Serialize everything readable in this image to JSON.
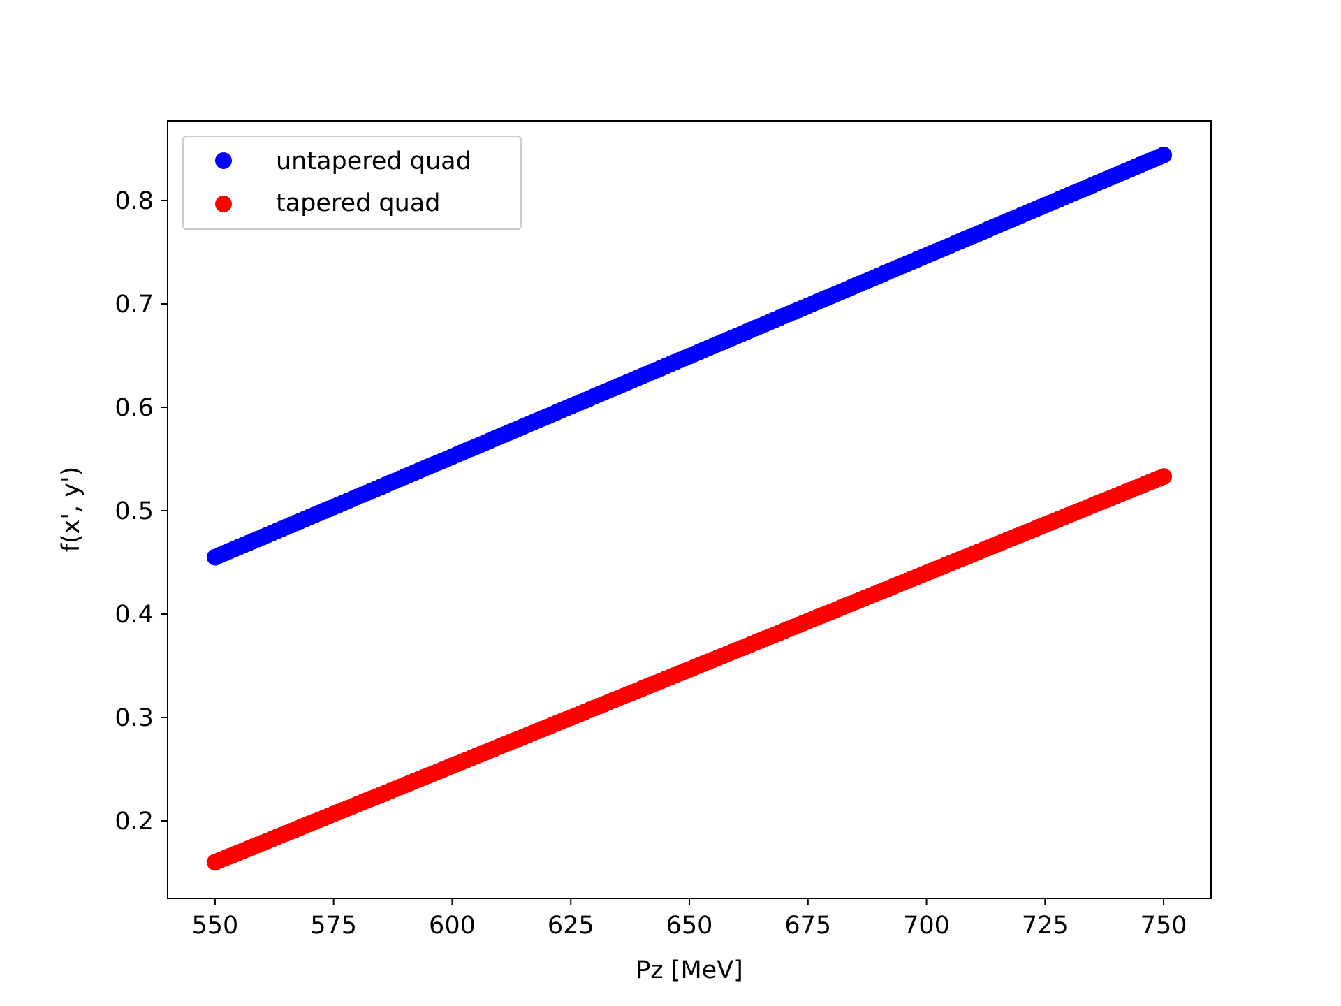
{
  "chart_data": {
    "type": "scatter",
    "title": "",
    "xlabel": "Pz [MeV]",
    "ylabel": "f(x', y')",
    "xlim": [
      540,
      760
    ],
    "ylim": [
      0.125,
      0.877
    ],
    "xticks": [
      550,
      575,
      600,
      625,
      650,
      675,
      700,
      725,
      750
    ],
    "yticks": [
      0.2,
      0.3,
      0.4,
      0.5,
      0.6,
      0.7,
      0.8
    ],
    "grid": false,
    "legend_position": "upper-left",
    "point_count": 201,
    "series": [
      {
        "name": "untapered quad",
        "color": "#0000ff",
        "x_start": 550,
        "x_end": 750,
        "y_start": 0.455,
        "y_end": 0.844
      },
      {
        "name": "tapered quad",
        "color": "#ff0000",
        "x_start": 550,
        "x_end": 750,
        "y_start": 0.16,
        "y_end": 0.533
      }
    ]
  }
}
